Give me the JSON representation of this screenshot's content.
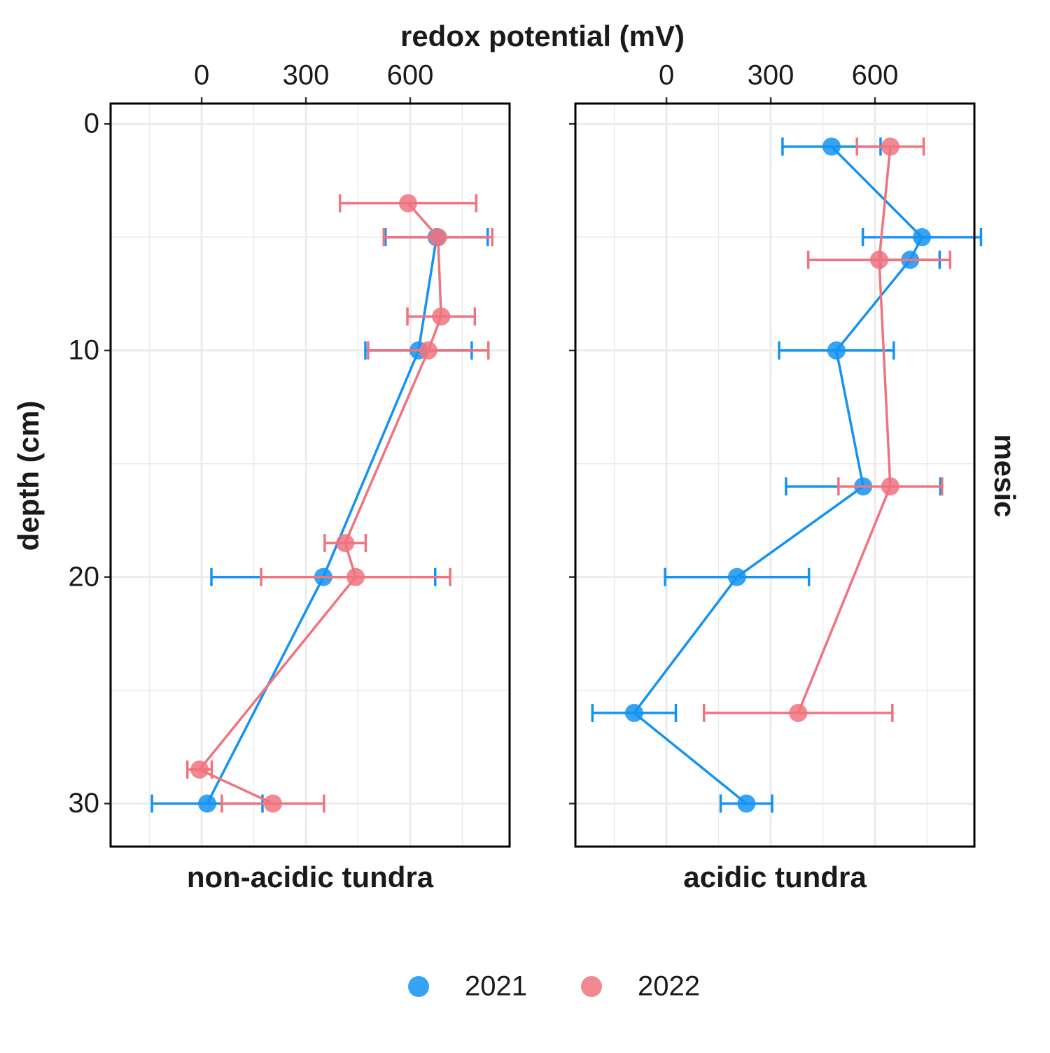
{
  "chart_data": {
    "type": "line",
    "title": "redox potential (mV)",
    "ylabel": "depth (cm)",
    "facet_label": "mesic",
    "xlim": [
      -262,
      886
    ],
    "xticks": [
      0,
      300,
      600
    ],
    "xminorticks": [
      -150,
      150,
      450,
      750
    ],
    "ylim": [
      -0.9,
      31.9
    ],
    "yticks": [
      0,
      10,
      20,
      30
    ],
    "yminorticks": [
      5,
      15,
      25
    ],
    "y_reversed": true,
    "grid": true,
    "series": [
      {
        "name": "2021",
        "color": "#1493f2"
      },
      {
        "name": "2022",
        "color": "#f0737f"
      }
    ],
    "panels": [
      {
        "label": "non-acidic tundra",
        "data": [
          {
            "x": [
              676,
              624,
              350,
              16
            ],
            "y": [
              5,
              10,
              20,
              30
            ],
            "xerr": [
              147,
              153,
              322,
              159
            ]
          },
          {
            "x": [
              594,
              680,
              689,
              652,
              413,
              443,
              -6,
              205
            ],
            "y": [
              3.5,
              5,
              8.5,
              10,
              18.5,
              20,
              28.5,
              30
            ],
            "xerr": [
              196,
              156,
              97,
              173,
              59,
              272,
              35,
              147
            ]
          }
        ]
      },
      {
        "label": "acidic tundra",
        "data": [
          {
            "x": [
              475,
              735,
              701,
              489,
              566,
              203,
              -93,
              230
            ],
            "y": [
              1,
              5,
              6,
              10,
              16,
              20,
              26,
              30
            ],
            "xerr": [
              141,
              170,
              85,
              165,
              222,
              207,
              120,
              74
            ]
          },
          {
            "x": [
              644,
              612,
              644,
              379
            ],
            "y": [
              1,
              6,
              16,
              26
            ],
            "xerr": [
              96,
              204,
              149,
              271
            ]
          }
        ]
      }
    ]
  }
}
